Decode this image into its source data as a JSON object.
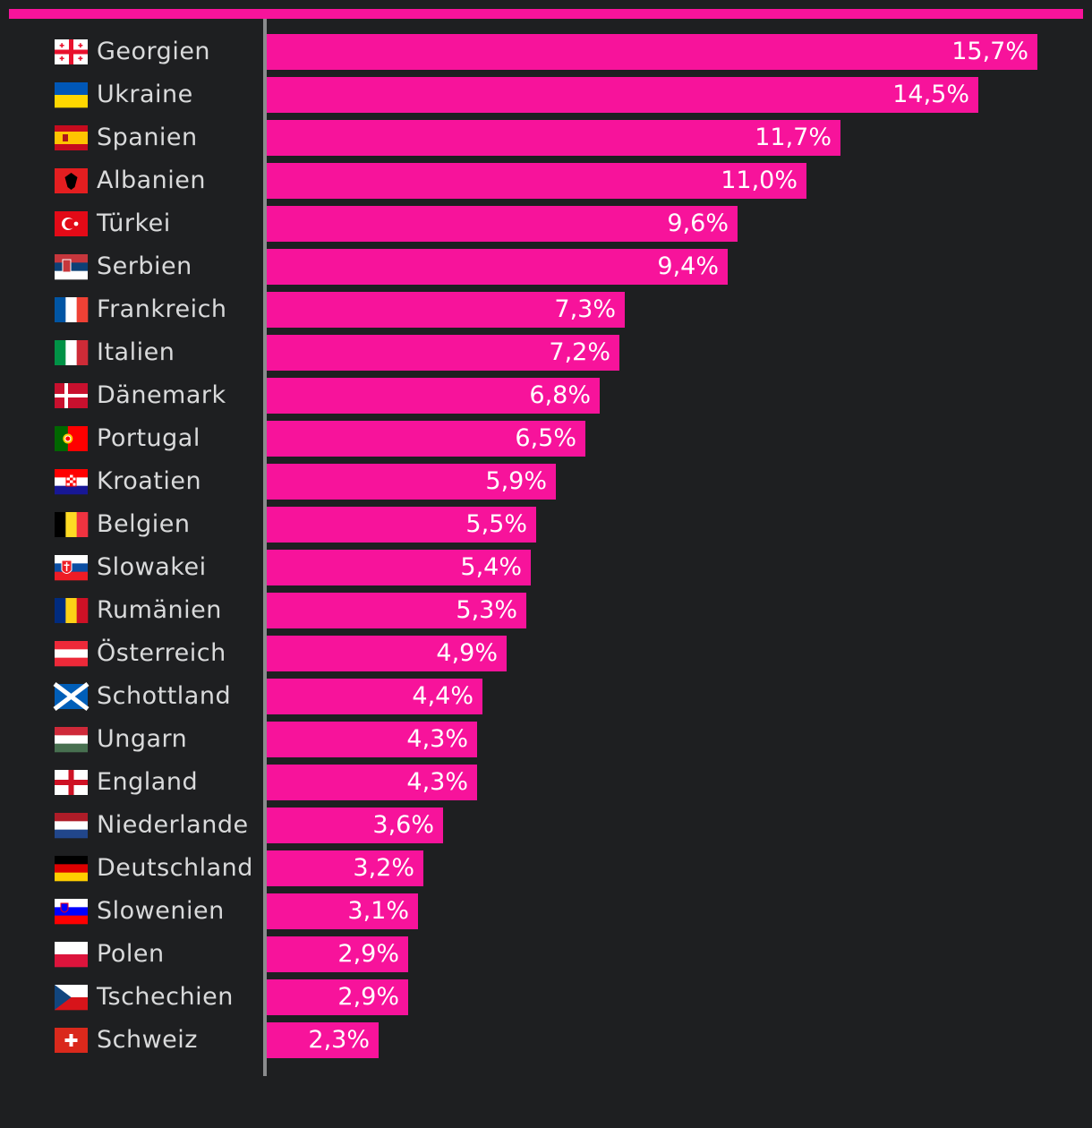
{
  "colors": {
    "background": "#1e1f21",
    "accent": "#f7139b",
    "axis": "#8a8b8d",
    "label": "#d9dadb",
    "value_label": "#ffffff"
  },
  "chart_data": {
    "type": "bar",
    "orientation": "horizontal",
    "title": "",
    "xlabel": "",
    "ylabel": "",
    "xlim": [
      0,
      15.7
    ],
    "grid": false,
    "legend": "none",
    "categories": [
      "Georgien",
      "Ukraine",
      "Spanien",
      "Albanien",
      "Türkei",
      "Serbien",
      "Frankreich",
      "Italien",
      "Dänemark",
      "Portugal",
      "Kroatien",
      "Belgien",
      "Slowakei",
      "Rumänien",
      "Österreich",
      "Schottland",
      "Ungarn",
      "England",
      "Niederlande",
      "Deutschland",
      "Slowenien",
      "Polen",
      "Tschechien",
      "Schweiz"
    ],
    "values": [
      15.7,
      14.5,
      11.7,
      11.0,
      9.6,
      9.4,
      7.3,
      7.2,
      6.8,
      6.5,
      5.9,
      5.5,
      5.4,
      5.3,
      4.9,
      4.4,
      4.3,
      4.3,
      3.6,
      3.2,
      3.1,
      2.9,
      2.9,
      2.3
    ],
    "value_labels": [
      "15,7%",
      "14,5%",
      "11,7%",
      "11,0%",
      "9,6%",
      "9,4%",
      "7,3%",
      "7,2%",
      "6,8%",
      "6,5%",
      "5,9%",
      "5,5%",
      "5,4%",
      "5,3%",
      "4,9%",
      "4,4%",
      "4,3%",
      "4,3%",
      "3,6%",
      "3,2%",
      "3,1%",
      "2,9%",
      "2,9%",
      "2,3%"
    ],
    "flags": [
      "georgia-flag-icon",
      "ukraine-flag-icon",
      "spain-flag-icon",
      "albania-flag-icon",
      "turkey-flag-icon",
      "serbia-flag-icon",
      "france-flag-icon",
      "italy-flag-icon",
      "denmark-flag-icon",
      "portugal-flag-icon",
      "croatia-flag-icon",
      "belgium-flag-icon",
      "slovakia-flag-icon",
      "romania-flag-icon",
      "austria-flag-icon",
      "scotland-flag-icon",
      "hungary-flag-icon",
      "england-flag-icon",
      "netherlands-flag-icon",
      "germany-flag-icon",
      "slovenia-flag-icon",
      "poland-flag-icon",
      "czechia-flag-icon",
      "switzerland-flag-icon"
    ]
  }
}
